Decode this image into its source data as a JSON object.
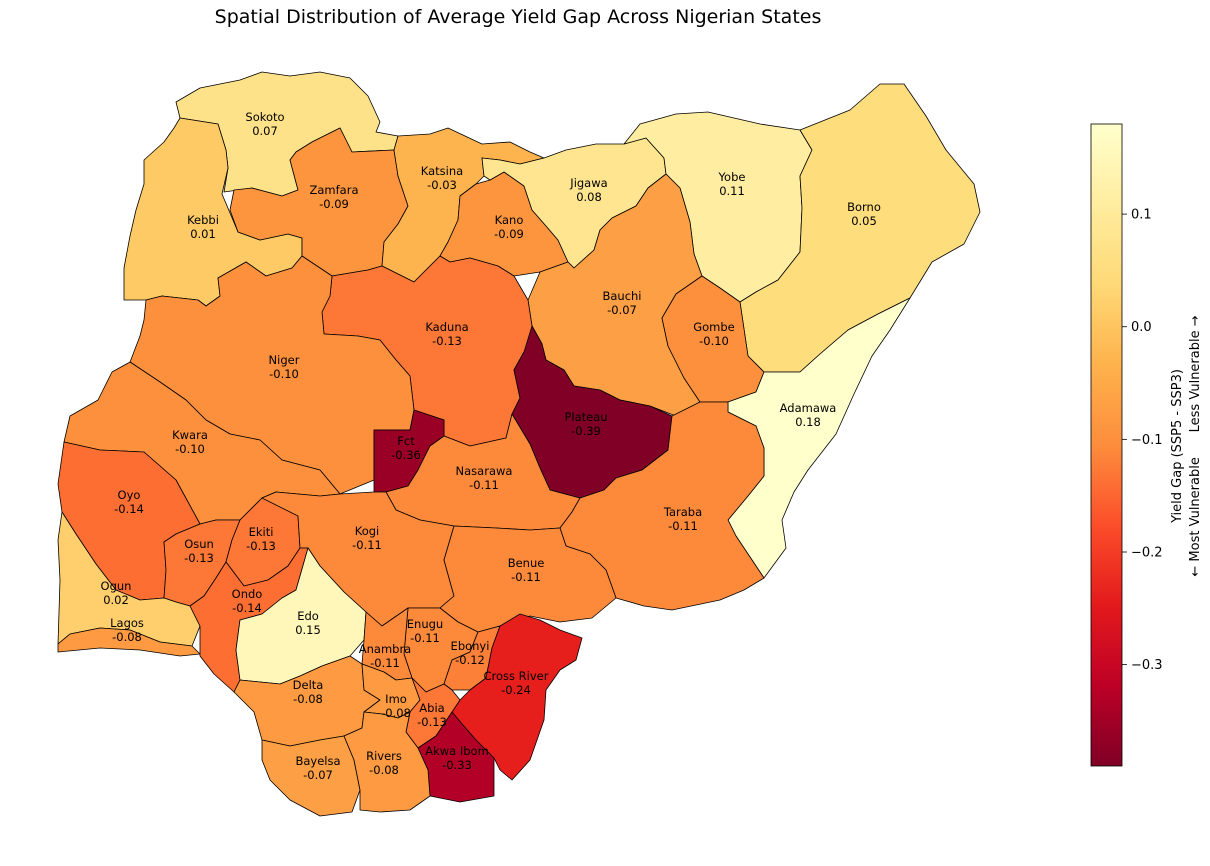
{
  "title": "Spatial Distribution of Average Yield Gap Across Nigerian States",
  "colorbar": {
    "label_line1": "Yield Gap (SSP5 - SSP3)",
    "label_line2": "← Most Vulnerable      Less Vulnerable →",
    "min": -0.39,
    "max": 0.18,
    "ticks": [
      0.1,
      0.0,
      -0.1,
      -0.2,
      -0.3
    ],
    "tick_labels": [
      "0.1",
      "0.0",
      "−0.1",
      "−0.2",
      "−0.3"
    ],
    "colormap": "YlOrRd_r"
  },
  "states": [
    {
      "name": "Sokoto",
      "value": 0.07,
      "label": "0.07"
    },
    {
      "name": "Kebbi",
      "value": 0.01,
      "label": "0.01"
    },
    {
      "name": "Zamfara",
      "value": -0.09,
      "label": "-0.09"
    },
    {
      "name": "Katsina",
      "value": -0.03,
      "label": "-0.03"
    },
    {
      "name": "Kano",
      "value": -0.09,
      "label": "-0.09"
    },
    {
      "name": "Jigawa",
      "value": 0.08,
      "label": "0.08"
    },
    {
      "name": "Yobe",
      "value": 0.11,
      "label": "0.11"
    },
    {
      "name": "Borno",
      "value": 0.05,
      "label": "0.05"
    },
    {
      "name": "Bauchi",
      "value": -0.07,
      "label": "-0.07"
    },
    {
      "name": "Gombe",
      "value": -0.1,
      "label": "-0.10"
    },
    {
      "name": "Adamawa",
      "value": 0.18,
      "label": "0.18"
    },
    {
      "name": "Kaduna",
      "value": -0.13,
      "label": "-0.13"
    },
    {
      "name": "Niger",
      "value": -0.1,
      "label": "-0.10"
    },
    {
      "name": "Plateau",
      "value": -0.39,
      "label": "-0.39"
    },
    {
      "name": "Fct",
      "value": -0.36,
      "label": "-0.36"
    },
    {
      "name": "Nasarawa",
      "value": -0.11,
      "label": "-0.11"
    },
    {
      "name": "Kwara",
      "value": -0.1,
      "label": "-0.10"
    },
    {
      "name": "Taraba",
      "value": -0.11,
      "label": "-0.11"
    },
    {
      "name": "Oyo",
      "value": -0.14,
      "label": "-0.14"
    },
    {
      "name": "Osun",
      "value": -0.13,
      "label": "-0.13"
    },
    {
      "name": "Ekiti",
      "value": -0.13,
      "label": "-0.13"
    },
    {
      "name": "Kogi",
      "value": -0.11,
      "label": "-0.11"
    },
    {
      "name": "Benue",
      "value": -0.11,
      "label": "-0.11"
    },
    {
      "name": "Ogun",
      "value": 0.02,
      "label": "0.02"
    },
    {
      "name": "Lagos",
      "value": -0.08,
      "label": "-0.08"
    },
    {
      "name": "Ondo",
      "value": -0.14,
      "label": "-0.14"
    },
    {
      "name": "Edo",
      "value": 0.15,
      "label": "0.15"
    },
    {
      "name": "Enugu",
      "value": -0.11,
      "label": "-0.11"
    },
    {
      "name": "Ebonyi",
      "value": -0.12,
      "label": "-0.12"
    },
    {
      "name": "Anambra",
      "value": -0.11,
      "label": "-0.11"
    },
    {
      "name": "Cross River",
      "value": -0.24,
      "label": "-0.24"
    },
    {
      "name": "Delta",
      "value": -0.08,
      "label": "-0.08"
    },
    {
      "name": "Imo",
      "value": -0.08,
      "label": "-0.08"
    },
    {
      "name": "Abia",
      "value": -0.13,
      "label": "-0.13"
    },
    {
      "name": "Akwa Ibom",
      "value": -0.33,
      "label": "-0.33"
    },
    {
      "name": "Bayelsa",
      "value": -0.07,
      "label": "-0.07"
    },
    {
      "name": "Rivers",
      "value": -0.08,
      "label": "-0.08"
    }
  ]
}
